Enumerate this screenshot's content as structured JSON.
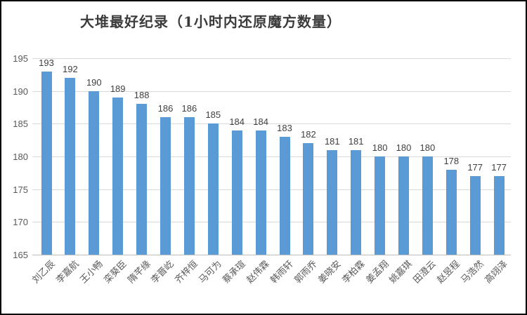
{
  "chart_data": {
    "type": "bar",
    "title": "大堆最好纪录（1小时内还原魔方数量）",
    "categories": [
      "刘乙辰",
      "李嘉航",
      "王小畅",
      "栾葵臣",
      "隋芊缘",
      "李晋屹",
      "齐梓恒",
      "马可为",
      "蔡承瑄",
      "赵伟霖",
      "韩雨轩",
      "郭雨乔",
      "姜晓安",
      "李柏霖",
      "姜孟翔",
      "姚嘉琪",
      "田澄云",
      "赵昱程",
      "马浩然",
      "高翊泽"
    ],
    "values": [
      193,
      192,
      190,
      189,
      188,
      186,
      186,
      185,
      184,
      184,
      183,
      182,
      181,
      181,
      180,
      180,
      180,
      178,
      177,
      177
    ],
    "data_labels_shown": true,
    "xlabel": "",
    "ylabel": "",
    "ylim": [
      165,
      195
    ],
    "yticks": [
      165,
      170,
      175,
      180,
      185,
      190,
      195
    ],
    "grid": true,
    "legend": false,
    "bar_color": "#5b9bd5",
    "gridline_color": "#d9d9d9",
    "axis_line_color": "#bfbfbf",
    "value_label_color": "#404040",
    "axis_text_color": "#595959",
    "title_color": "#3b3b3b",
    "background_color": "#ffffff",
    "border_color": "#000000"
  }
}
